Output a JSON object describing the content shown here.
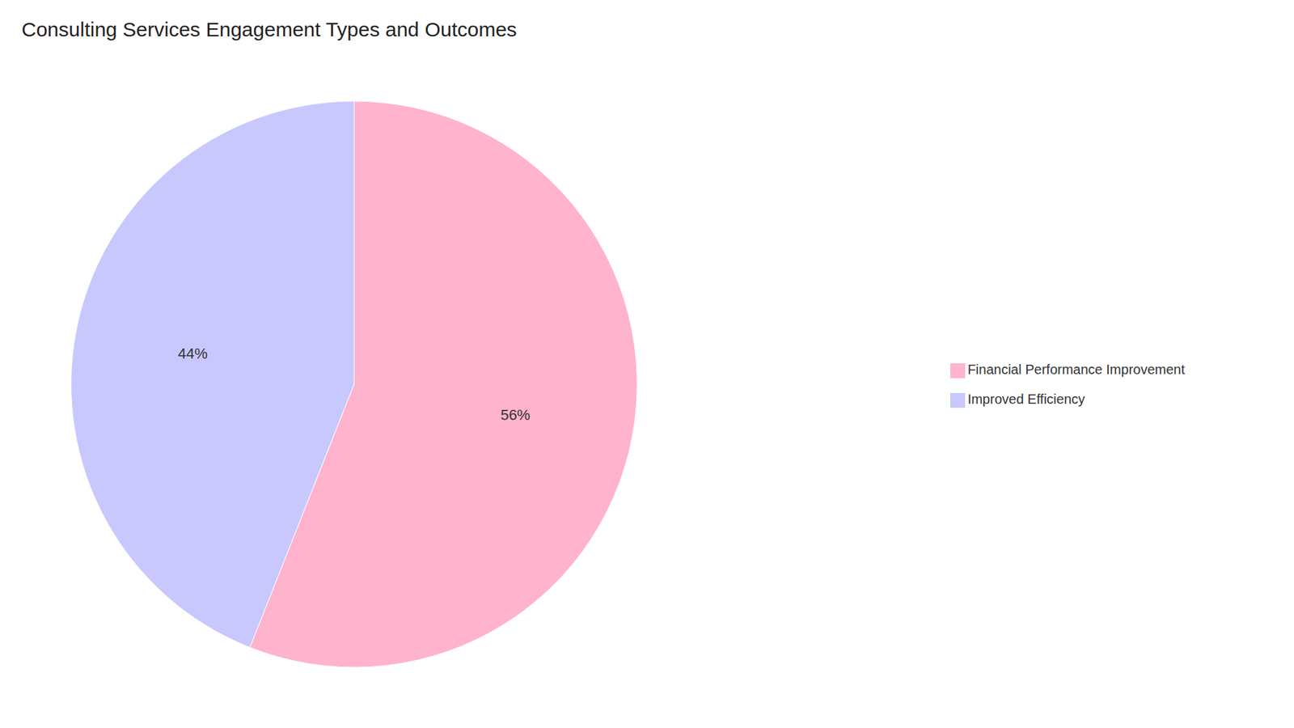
{
  "chart_data": {
    "type": "pie",
    "title": "Consulting Services Engagement Types and Outcomes",
    "categories": [
      "Financial Performance Improvement",
      "Improved Efficiency"
    ],
    "values": [
      56,
      44
    ],
    "value_labels": [
      "56%",
      "44%"
    ],
    "colors": [
      "#FFB3CC",
      "#C8C8FF"
    ],
    "data_labels": true,
    "legend": "right"
  }
}
